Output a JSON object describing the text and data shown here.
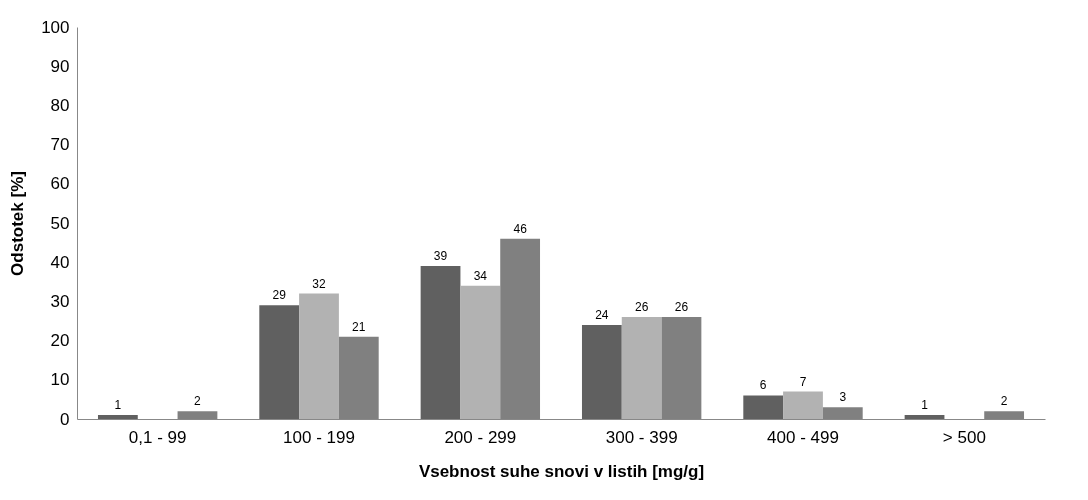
{
  "chart_data": {
    "type": "bar",
    "xlabel": "Vsebnost suhe snovi v listih [mg/g]",
    "ylabel": "Odstotek [%]",
    "categories": [
      "0,1 - 99",
      "100 - 199",
      "200 - 299",
      "300 - 399",
      "400 - 499",
      "> 500"
    ],
    "series": [
      {
        "color": "#606060",
        "values": [
          1,
          29,
          39,
          24,
          6,
          1
        ]
      },
      {
        "color": "#b2b2b2",
        "values": [
          null,
          32,
          34,
          26,
          7,
          null
        ]
      },
      {
        "color": "#808080",
        "values": [
          2,
          21,
          46,
          26,
          3,
          2
        ]
      }
    ],
    "ylim": [
      0,
      100
    ],
    "yticks": [
      0,
      10,
      20,
      30,
      40,
      50,
      60,
      70,
      80,
      90,
      100
    ],
    "grid": false,
    "data_labels": true
  }
}
